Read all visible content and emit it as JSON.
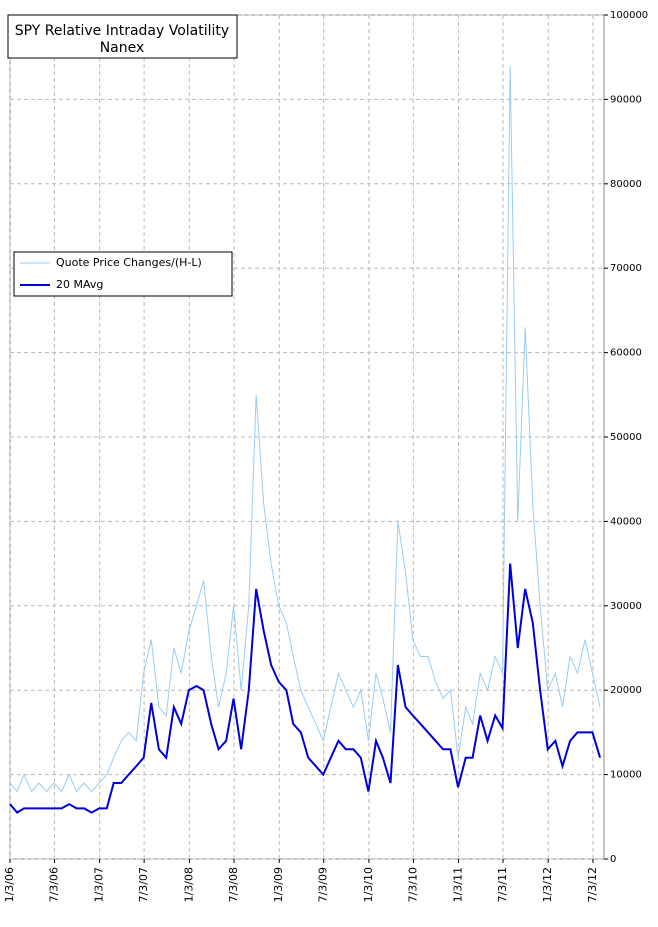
{
  "chart_data": {
    "type": "line",
    "title": "SPY Relative Intraday Volatility",
    "subtitle": "Nanex",
    "x": [
      "1/3/06",
      "2/1/06",
      "3/1/06",
      "4/1/06",
      "5/1/06",
      "6/1/06",
      "7/1/06",
      "8/1/06",
      "9/1/06",
      "10/1/06",
      "11/1/06",
      "12/1/06",
      "1/1/07",
      "2/1/07",
      "3/1/07",
      "4/1/07",
      "5/1/07",
      "6/1/07",
      "7/1/07",
      "8/1/07",
      "9/1/07",
      "10/1/07",
      "11/1/07",
      "12/1/07",
      "1/1/08",
      "2/1/08",
      "3/1/08",
      "4/1/08",
      "5/1/08",
      "6/1/08",
      "7/1/08",
      "8/1/08",
      "9/1/08",
      "10/1/08",
      "11/1/08",
      "12/1/08",
      "1/1/09",
      "2/1/09",
      "3/1/09",
      "4/1/09",
      "5/1/09",
      "6/1/09",
      "7/1/09",
      "8/1/09",
      "9/1/09",
      "10/1/09",
      "11/1/09",
      "12/1/09",
      "1/1/10",
      "2/1/10",
      "3/1/10",
      "4/1/10",
      "5/1/10",
      "6/1/10",
      "7/1/10",
      "8/1/10",
      "9/1/10",
      "10/1/10",
      "11/1/10",
      "12/1/10",
      "1/1/11",
      "2/1/11",
      "3/1/11",
      "4/1/11",
      "5/1/11",
      "6/1/11",
      "7/1/11",
      "8/1/11",
      "9/1/11",
      "10/1/11",
      "11/1/11",
      "12/1/11",
      "1/1/12",
      "2/1/12",
      "3/1/12",
      "4/1/12",
      "5/1/12",
      "6/1/12",
      "7/1/12",
      "8/1/12"
    ],
    "series": [
      {
        "name": "Quote Price Changes/(H-L)",
        "color": "#99ccf5",
        "width": 1,
        "values": [
          9000,
          8000,
          10000,
          8000,
          9000,
          8000,
          9000,
          8000,
          10000,
          8000,
          9000,
          8000,
          9000,
          10000,
          12000,
          14000,
          15000,
          14000,
          22000,
          26000,
          18000,
          17000,
          25000,
          22000,
          27000,
          30000,
          33000,
          24000,
          18000,
          22000,
          30000,
          20000,
          30000,
          55000,
          42000,
          35000,
          30000,
          28000,
          24000,
          20000,
          18000,
          16000,
          14000,
          18000,
          22000,
          20000,
          18000,
          20000,
          14000,
          22000,
          19000,
          15000,
          40000,
          34000,
          26000,
          24000,
          24000,
          21000,
          19000,
          20000,
          12000,
          18000,
          16000,
          22000,
          20000,
          24000,
          22000,
          94000,
          40000,
          63000,
          42000,
          30000,
          20000,
          22000,
          18000,
          24000,
          22000,
          26000,
          22000,
          18000
        ]
      },
      {
        "name": "20 MAvg",
        "color": "#0000dd",
        "width": 2,
        "values": [
          6500,
          5500,
          6000,
          6000,
          6000,
          6000,
          6000,
          6000,
          6500,
          6000,
          6000,
          5500,
          6000,
          6000,
          9000,
          9000,
          10000,
          11000,
          12000,
          18500,
          13000,
          12000,
          18000,
          16000,
          20000,
          20500,
          20000,
          16000,
          13000,
          14000,
          19000,
          13000,
          20000,
          32000,
          27000,
          23000,
          21000,
          20000,
          16000,
          15000,
          12000,
          11000,
          10000,
          12000,
          14000,
          13000,
          13000,
          12000,
          8000,
          14000,
          12000,
          9000,
          23000,
          18000,
          17000,
          16000,
          15000,
          14000,
          13000,
          13000,
          8500,
          12000,
          12000,
          17000,
          14000,
          17000,
          15500,
          35000,
          25000,
          32000,
          28000,
          20000,
          13000,
          14000,
          11000,
          14000,
          15000,
          15000,
          15000,
          12000
        ]
      }
    ],
    "xlim": [
      "1/3/06",
      "8/17/12"
    ],
    "xticks": [
      "1/3/06",
      "7/3/06",
      "1/3/07",
      "7/3/07",
      "1/3/08",
      "7/3/08",
      "1/3/09",
      "7/3/09",
      "1/3/10",
      "7/3/10",
      "1/3/11",
      "7/3/11",
      "1/3/12",
      "7/3/12"
    ],
    "ylim": [
      0,
      100000
    ],
    "yticks": [
      0,
      10000,
      20000,
      30000,
      40000,
      50000,
      60000,
      70000,
      80000,
      90000,
      100000
    ],
    "grid": true
  }
}
